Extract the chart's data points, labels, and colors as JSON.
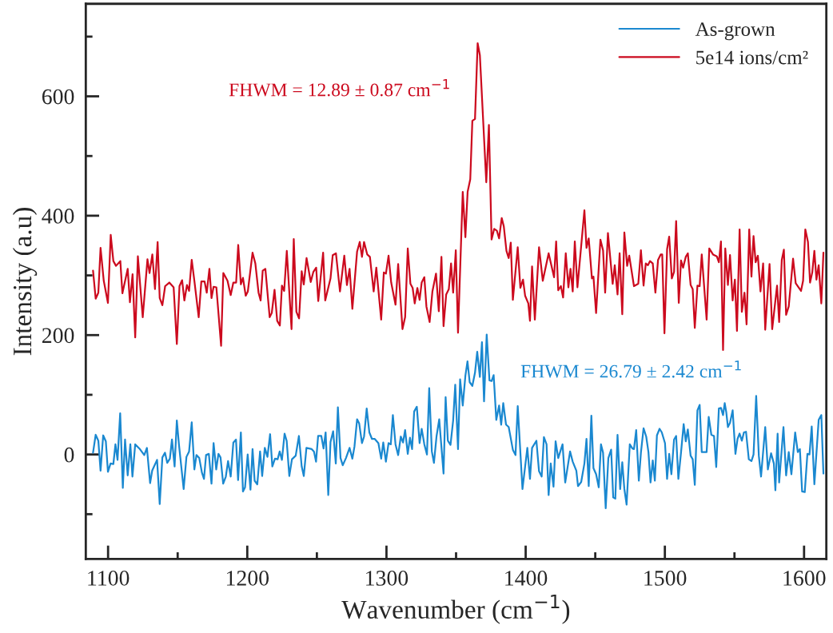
{
  "chart_data": {
    "type": "line",
    "xlabel": "Wavenumber (cm$^{−1}$)",
    "ylabel": "Intensity (a.u)",
    "xlim": [
      1084,
      1616
    ],
    "ylim": [
      -175,
      755
    ],
    "xticks": [
      1100,
      1200,
      1300,
      1400,
      1500,
      1600
    ],
    "yticks": [
      0,
      200,
      400,
      600
    ],
    "legend": "top right",
    "grid": false,
    "marker": "none",
    "line_style": "solid",
    "annotations": [
      "FHWM = 12.89 ± 0.87 cm$^{−1}$",
      "FHWM = 26.79 ± 2.42 cm$^{−1}$"
    ],
    "series": [
      {
        "name": "As-grown",
        "color": "#1a88d0",
        "x": [
          1089.2,
          1091.1,
          1093.0,
          1094.6,
          1096.5,
          1098.4,
          1099.9,
          1101.8,
          1103.8,
          1105.3,
          1106.8,
          1108.7,
          1110.6,
          1112.2,
          1114.1,
          1116.0,
          1117.5,
          1119.5,
          1122.5,
          1126.0,
          1127.9,
          1130.2,
          1131.7,
          1135.2,
          1137.1,
          1139.0,
          1140.9,
          1142.5,
          1144.4,
          1145.9,
          1147.8,
          1149.4,
          1150.9,
          1154.3,
          1156.3,
          1158.2,
          1160.1,
          1162.0,
          1163.5,
          1165.5,
          1167.4,
          1168.9,
          1170.4,
          1172.4,
          1174.3,
          1175.8,
          1177.7,
          1179.3,
          1180.8,
          1182.7,
          1184.6,
          1186.2,
          1188.1,
          1190.0,
          1191.9,
          1193.4,
          1195.4,
          1196.9,
          1198.4,
          1200.3,
          1202.3,
          1203.8,
          1205.3,
          1207.2,
          1209.2,
          1210.7,
          1212.6,
          1214.5,
          1216.4,
          1218.0,
          1219.9,
          1221.8,
          1223.3,
          1224.9,
          1226.8,
          1228.3,
          1230.2,
          1232.1,
          1234.8,
          1237.1,
          1239.1,
          1240.6,
          1242.5,
          1246.3,
          1247.9,
          1249.4,
          1250.9,
          1253.2,
          1254.8,
          1256.3,
          1258.2,
          1259.8,
          1261.7,
          1263.6,
          1265.1,
          1267.0,
          1268.6,
          1270.9,
          1273.5,
          1275.5,
          1277.0,
          1278.9,
          1280.4,
          1282.4,
          1283.9,
          1285.8,
          1287.7,
          1289.6,
          1291.6,
          1294.2,
          1296.2,
          1297.7,
          1299.6,
          1301.5,
          1303.1,
          1304.6,
          1306.5,
          1308.4,
          1310.3,
          1311.9,
          1313.4,
          1315.3,
          1316.9,
          1318.4,
          1319.9,
          1321.8,
          1323.8,
          1325.3,
          1327.2,
          1329.1,
          1330.7,
          1332.6,
          1334.1,
          1336.0,
          1337.9,
          1341.0,
          1342.5,
          1344.1,
          1346.0,
          1347.9,
          1349.4,
          1351.4,
          1352.9,
          1354.8,
          1356.7,
          1358.2,
          1359.8,
          1361.7,
          1363.6,
          1365.2,
          1367.1,
          1368.6,
          1370.1,
          1372.0,
          1374.0,
          1375.5,
          1377.0,
          1378.9,
          1380.9,
          1382.4,
          1383.9,
          1385.9,
          1387.8,
          1390.8,
          1392.7,
          1394.3,
          1397.7,
          1401.2,
          1403.1,
          1404.6,
          1407.7,
          1409.6,
          1411.5,
          1413.1,
          1415.0,
          1416.5,
          1418.0,
          1420.0,
          1421.5,
          1423.4,
          1426.5,
          1428.4,
          1431.9,
          1433.8,
          1436.4,
          1437.6,
          1439.9,
          1442.2,
          1443.7,
          1445.3,
          1447.2,
          1448.7,
          1450.6,
          1452.5,
          1454.1,
          1455.6,
          1457.5,
          1459.4,
          1461.4,
          1462.9,
          1464.4,
          1466.0,
          1467.9,
          1469.4,
          1470.9,
          1472.5,
          1474.8,
          1476.7,
          1477.8,
          1479.4,
          1481.3,
          1482.8,
          1484.7,
          1486.6,
          1488.2,
          1489.7,
          1491.3,
          1492.8,
          1494.3,
          1496.2,
          1497.8,
          1500.1,
          1501.6,
          1503.1,
          1504.7,
          1506.6,
          1508.1,
          1509.7,
          1511.6,
          1513.5,
          1515.0,
          1516.5,
          1518.5,
          1520.0,
          1521.5,
          1523.4,
          1525.0,
          1526.5,
          1528.0,
          1530.0,
          1531.5,
          1533.4,
          1535.3,
          1536.9,
          1538.8,
          1540.3,
          1541.8,
          1543.0,
          1544.1,
          1545.3,
          1546.8,
          1548.7,
          1550.7,
          1552.2,
          1553.7,
          1555.3,
          1556.8,
          1558.3,
          1560.3,
          1562.2,
          1563.7,
          1565.6,
          1567.5,
          1569.1,
          1572.1,
          1574.0,
          1576.3,
          1578.3,
          1579.4,
          1581.0,
          1582.1,
          1585.2,
          1587.1,
          1589.0,
          1590.9,
          1593.6,
          1595.5,
          1597.0,
          1598.6,
          1600.5,
          1602.4,
          1603.9,
          1605.5,
          1607.4,
          1610.5,
          1612.4,
          1613.9
        ],
        "values": [
          3,
          33,
          23,
          -27,
          32,
          22,
          -29,
          -15,
          -16,
          17,
          -9,
          69,
          -56,
          25,
          -35,
          17,
          -37,
          17,
          10,
          -1,
          11,
          -48,
          -27,
          -9,
          -83,
          -5,
          3,
          -14,
          -7,
          25,
          -20,
          57,
          17,
          -58,
          -4,
          5,
          54,
          -25,
          -1,
          -6,
          -30,
          -41,
          -1,
          1,
          -49,
          19,
          -25,
          1,
          -5,
          -49,
          -37,
          -11,
          -37,
          20,
          25,
          -43,
          37,
          -62,
          -55,
          0,
          -59,
          9,
          -44,
          -50,
          5,
          -36,
          11,
          -4,
          34,
          -20,
          -7,
          -8,
          5,
          -9,
          35,
          23,
          -36,
          -8,
          -2,
          31,
          -20,
          -36,
          11,
          9,
          5,
          -12,
          31,
          31,
          10,
          37,
          -68,
          21,
          39,
          -15,
          79,
          -6,
          -18,
          -6,
          11,
          -7,
          13,
          59,
          52,
          19,
          30,
          77,
          37,
          26,
          26,
          19,
          -7,
          20,
          -12,
          19,
          17,
          66,
          17,
          -1,
          30,
          20,
          41,
          1,
          28,
          9,
          72,
          80,
          19,
          43,
          17,
          0,
          111,
          5,
          -14,
          31,
          59,
          -32,
          96,
          23,
          16,
          57,
          117,
          9,
          126,
          82,
          132,
          156,
          121,
          115,
          137,
          172,
          130,
          188,
          89,
          201,
          124,
          123,
          133,
          58,
          82,
          50,
          86,
          50,
          46,
          8,
          -1,
          81,
          -58,
          11,
          -41,
          11,
          23,
          -28,
          -37,
          29,
          17,
          -68,
          -15,
          -54,
          22,
          -6,
          17,
          -47,
          5,
          -12,
          -27,
          -53,
          -46,
          -15,
          26,
          -53,
          65,
          -23,
          -33,
          -55,
          17,
          3,
          -90,
          -6,
          8,
          -72,
          -74,
          33,
          -58,
          -13,
          -58,
          -84,
          17,
          10,
          9,
          41,
          -44,
          3,
          44,
          30,
          4,
          -47,
          -10,
          -44,
          32,
          43,
          37,
          19,
          -41,
          1,
          -33,
          25,
          31,
          -41,
          3,
          51,
          22,
          42,
          -2,
          -8,
          -51,
          74,
          83,
          4,
          4,
          4,
          63,
          33,
          31,
          -21,
          77,
          78,
          66,
          86,
          71,
          46,
          53,
          74,
          1,
          26,
          35,
          23,
          37,
          38,
          -8,
          -11,
          0,
          98,
          -2,
          -37,
          46,
          -25,
          2,
          -15,
          -60,
          35,
          -47,
          46,
          -35,
          4,
          -33,
          37,
          4,
          9,
          -62,
          -63,
          1,
          0,
          47,
          -50,
          58,
          66,
          -32
        ]
      },
      {
        "name": "5e14 ions/cm²",
        "color": "#cc0a1e",
        "x": [
          1089.2,
          1091.1,
          1093.0,
          1094.6,
          1096.9,
          1099.9,
          1101.9,
          1103.8,
          1105.7,
          1108.8,
          1110.3,
          1114.1,
          1115.7,
          1117.6,
          1119.5,
          1121.4,
          1124.9,
          1128.3,
          1129.8,
          1131.8,
          1133.7,
          1135.6,
          1137.1,
          1139.0,
          1141.0,
          1144.0,
          1147.1,
          1149.4,
          1151.3,
          1153.2,
          1154.8,
          1156.7,
          1158.2,
          1160.1,
          1162.0,
          1165.1,
          1167.0,
          1169.3,
          1170.9,
          1172.8,
          1174.3,
          1175.8,
          1177.8,
          1181.2,
          1182.8,
          1185.8,
          1188.1,
          1190.0,
          1192.0,
          1193.5,
          1195.4,
          1196.9,
          1198.9,
          1200.4,
          1203.8,
          1205.8,
          1208.1,
          1209.6,
          1211.1,
          1213.0,
          1216.1,
          1217.6,
          1219.6,
          1221.5,
          1223.4,
          1224.9,
          1226.5,
          1228.4,
          1231.8,
          1233.4,
          1235.3,
          1237.2,
          1239.1,
          1240.6,
          1242.6,
          1245.6,
          1247.5,
          1249.5,
          1251.0,
          1254.5,
          1256.0,
          1259.8,
          1261.4,
          1263.7,
          1266.6,
          1269.7,
          1271.6,
          1273.5,
          1275.5,
          1278.9,
          1280.8,
          1282.4,
          1283.9,
          1286.2,
          1288.1,
          1290.8,
          1292.7,
          1296.2,
          1298.1,
          1299.6,
          1301.5,
          1303.4,
          1306.5,
          1308.4,
          1311.5,
          1313.4,
          1315.3,
          1317.2,
          1318.8,
          1320.3,
          1322.2,
          1323.8,
          1325.3,
          1327.2,
          1328.7,
          1331.0,
          1333.0,
          1335.6,
          1337.6,
          1339.5,
          1341.0,
          1342.9,
          1344.8,
          1346.4,
          1347.9,
          1349.8,
          1351.4,
          1354.8,
          1356.7,
          1358.3,
          1360.2,
          1361.7,
          1363.6,
          1365.5,
          1367.1,
          1371.7,
          1373.6,
          1375.5,
          1377.4,
          1379.3,
          1380.9,
          1382.8,
          1384.3,
          1386.2,
          1387.8,
          1389.3,
          1390.8,
          1394.3,
          1396.2,
          1398.1,
          1399.6,
          1401.9,
          1403.1,
          1404.6,
          1406.6,
          1409.6,
          1412.3,
          1416.5,
          1420.4,
          1421.9,
          1423.4,
          1425.3,
          1426.9,
          1428.8,
          1430.7,
          1432.2,
          1433.8,
          1435.3,
          1437.2,
          1442.2,
          1443.7,
          1445.3,
          1447.6,
          1448.7,
          1450.6,
          1453.7,
          1455.6,
          1457.1,
          1459.1,
          1462.5,
          1464.0,
          1466.0,
          1467.5,
          1469.4,
          1470.9,
          1472.9,
          1474.4,
          1477.8,
          1480.9,
          1482.8,
          1484.7,
          1486.3,
          1487.8,
          1489.3,
          1491.3,
          1493.2,
          1495.1,
          1497.0,
          1498.1,
          1499.7,
          1501.6,
          1503.1,
          1505.0,
          1506.6,
          1508.1,
          1510.0,
          1511.6,
          1513.1,
          1515.0,
          1516.5,
          1518.5,
          1520.0,
          1521.5,
          1523.4,
          1525.0,
          1526.5,
          1530.0,
          1531.9,
          1534.6,
          1537.3,
          1538.8,
          1540.3,
          1541.8,
          1543.4,
          1545.3,
          1546.8,
          1548.7,
          1550.3,
          1551.8,
          1553.7,
          1555.3,
          1557.2,
          1558.7,
          1560.6,
          1562.2,
          1563.7,
          1565.2,
          1566.8,
          1568.7,
          1570.6,
          1572.1,
          1575.2,
          1577.1,
          1580.6,
          1582.1,
          1584.0,
          1585.5,
          1587.1,
          1589.0,
          1592.1,
          1594.0,
          1597.8,
          1599.3,
          1600.9,
          1602.8,
          1604.3,
          1605.9,
          1607.4,
          1608.9,
          1610.5,
          1612.4,
          1613.9
        ],
        "values": [
          308,
          261,
          271,
          346,
          291,
          254,
          368,
          324,
          316,
          324,
          270,
          311,
          255,
          302,
          196,
          332,
          230,
          327,
          304,
          335,
          277,
          356,
          262,
          250,
          282,
          288,
          280,
          185,
          282,
          292,
          258,
          284,
          274,
          326,
          291,
          230,
          290,
          290,
          271,
          311,
          262,
          281,
          280,
          182,
          304,
          291,
          267,
          288,
          288,
          351,
          285,
          296,
          266,
          273,
          338,
          320,
          271,
          258,
          308,
          311,
          230,
          237,
          276,
          224,
          216,
          283,
          274,
          341,
          210,
          361,
          239,
          228,
          307,
          285,
          329,
          289,
          306,
          313,
          257,
          338,
          258,
          295,
          334,
          337,
          273,
          333,
          284,
          311,
          244,
          340,
          356,
          331,
          356,
          335,
          331,
          273,
          313,
          226,
          305,
          303,
          333,
          288,
          251,
          319,
          210,
          230,
          345,
          286,
          279,
          253,
          279,
          259,
          288,
          297,
          248,
          222,
          273,
          303,
          240,
          331,
          215,
          268,
          277,
          320,
          271,
          342,
          204,
          440,
          364,
          440,
          461,
          559,
          562,
          689,
          669,
          456,
          552,
          360,
          378,
          375,
          362,
          396,
          382,
          341,
          329,
          355,
          259,
          347,
          279,
          293,
          266,
          253,
          224,
          315,
          226,
          347,
          291,
          337,
          297,
          357,
          275,
          282,
          263,
          337,
          280,
          311,
          273,
          357,
          280,
          409,
          346,
          362,
          295,
          298,
          237,
          360,
          342,
          271,
          371,
          286,
          317,
          268,
          337,
          235,
          372,
          316,
          333,
          282,
          286,
          342,
          283,
          320,
          317,
          324,
          320,
          271,
          326,
          335,
          335,
          203,
          344,
          365,
          295,
          306,
          391,
          254,
          325,
          313,
          331,
          337,
          284,
          277,
          212,
          283,
          282,
          335,
          226,
          345,
          335,
          332,
          322,
          357,
          175,
          345,
          284,
          334,
          258,
          293,
          207,
          377,
          239,
          271,
          218,
          377,
          298,
          366,
          322,
          333,
          273,
          320,
          209,
          319,
          210,
          283,
          222,
          326,
          343,
          234,
          248,
          328,
          287,
          274,
          291,
          377,
          356,
          288,
          305,
          341,
          293,
          317,
          253,
          338
        ]
      }
    ]
  }
}
